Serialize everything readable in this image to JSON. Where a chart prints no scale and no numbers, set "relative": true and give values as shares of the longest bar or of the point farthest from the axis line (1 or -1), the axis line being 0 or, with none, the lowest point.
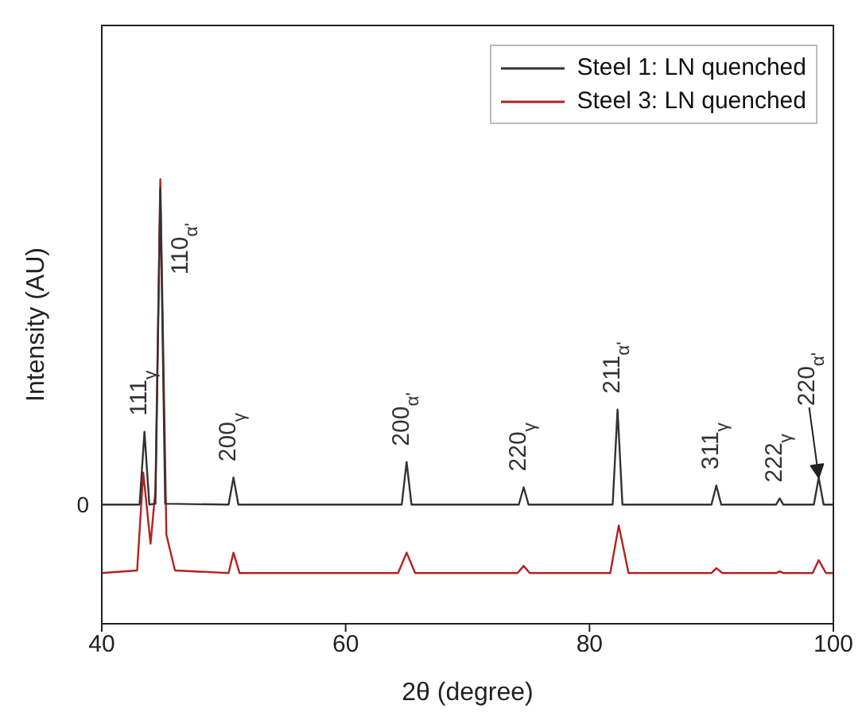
{
  "chart_data": {
    "type": "line",
    "relative": true,
    "xlabel": "2θ (degree)",
    "ylabel": "Intensity (AU)",
    "xlim": [
      40,
      100
    ],
    "xticks": [
      40,
      60,
      80,
      100
    ],
    "legend": "top right",
    "marker": "none",
    "line_style": "solid",
    "series": [
      {
        "name": "Steel 1: LN quenched",
        "color": "#333333",
        "x": [
          40,
          43.1,
          43.5,
          43.9,
          44.4,
          44.8,
          45.2,
          50.4,
          50.8,
          51.2,
          64.6,
          65.0,
          65.4,
          74.2,
          74.6,
          75.0,
          81.9,
          82.3,
          82.7,
          90.0,
          90.4,
          90.8,
          95.3,
          95.6,
          95.9,
          98.4,
          98.8,
          99.2,
          100
        ],
        "values": [
          0.268,
          0.268,
          0.432,
          0.268,
          0.27,
          0.98,
          0.27,
          0.268,
          0.329,
          0.268,
          0.268,
          0.364,
          0.268,
          0.268,
          0.307,
          0.268,
          0.268,
          0.482,
          0.268,
          0.268,
          0.311,
          0.268,
          0.268,
          0.282,
          0.268,
          0.268,
          0.329,
          0.268,
          0.268
        ]
      },
      {
        "name": "Steel 3: LN quenched",
        "color": "#b22222",
        "x": [
          40,
          42.9,
          43.4,
          44.0,
          44.4,
          44.8,
          45.3,
          46,
          50.4,
          50.8,
          51.3,
          64.3,
          65.0,
          65.7,
          74.1,
          74.6,
          75.1,
          81.7,
          82.4,
          83.2,
          90,
          90.4,
          90.9,
          95.3,
          95.6,
          95.9,
          98.3,
          98.8,
          99.4,
          100
        ],
        "values": [
          0.114,
          0.12,
          0.34,
          0.18,
          0.3,
          1.0,
          0.2,
          0.12,
          0.114,
          0.16,
          0.114,
          0.114,
          0.16,
          0.114,
          0.114,
          0.13,
          0.114,
          0.114,
          0.221,
          0.114,
          0.114,
          0.125,
          0.114,
          0.114,
          0.118,
          0.114,
          0.114,
          0.143,
          0.114,
          0.114
        ]
      }
    ],
    "annotations": [
      {
        "text": "0",
        "x": 40,
        "y": 0.268
      },
      {
        "text": "111$_{γ}$",
        "x": 43.5,
        "y": 0.432
      },
      {
        "text": "110$_{α'}$",
        "x": 44.8,
        "y": 1.0
      },
      {
        "text": "200$_{γ}$",
        "x": 50.8,
        "y": 0.329
      },
      {
        "text": "200$_{α'}$",
        "x": 65.0,
        "y": 0.364
      },
      {
        "text": "220$_{γ}$",
        "x": 74.6,
        "y": 0.307
      },
      {
        "text": "211$_{α'}$",
        "x": 82.3,
        "y": 0.482
      },
      {
        "text": "311$_{γ}$",
        "x": 90.4,
        "y": 0.311
      },
      {
        "text": "222$_{γ}$",
        "x": 95.6,
        "y": 0.282
      },
      {
        "text": "220$_{α'}$",
        "x": 98.8,
        "y": 0.329
      }
    ]
  }
}
